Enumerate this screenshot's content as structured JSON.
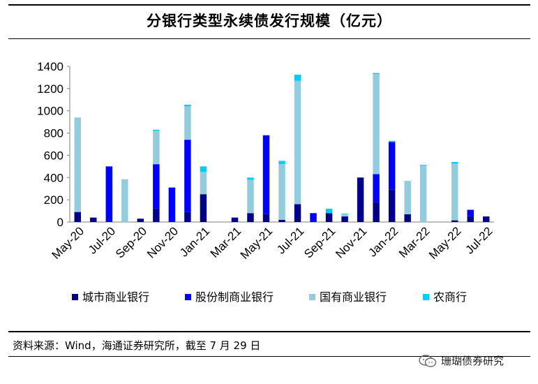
{
  "title": "分银行类型永续债发行规模（亿元）",
  "source_note": "资料来源：Wind，海通证券研究所，截至 7 月 29 日",
  "watermark": {
    "text": "珊瑚债券研究",
    "icon": "wechat-icon"
  },
  "chart_data": {
    "type": "bar",
    "stacked": true,
    "title": "分银行类型永续债发行规模（亿元）",
    "xlabel": "",
    "ylabel": "",
    "ylim": [
      0,
      1400
    ],
    "yticks": [
      "0",
      "200",
      "400",
      "600",
      "800",
      "1000",
      "1200",
      "1400"
    ],
    "grid": false,
    "legend_position": "bottom",
    "categories": [
      "May-20",
      "Jun-20",
      "Jul-20",
      "Aug-20",
      "Sep-20",
      "Oct-20",
      "Nov-20",
      "Dec-20",
      "Jan-21",
      "Feb-21",
      "Mar-21",
      "Apr-21",
      "May-21",
      "Jun-21",
      "Jul-21",
      "Aug-21",
      "Sep-21",
      "Oct-21",
      "Nov-21",
      "Dec-21",
      "Jan-22",
      "Feb-22",
      "Mar-22",
      "Apr-22",
      "May-22",
      "Jun-22",
      "Jul-22"
    ],
    "xtick_labels": [
      "May-20",
      "Jul-20",
      "Sep-20",
      "Nov-20",
      "Jan-21",
      "Mar-21",
      "May-21",
      "Jul-21",
      "Sep-21",
      "Nov-21",
      "Jan-22",
      "Mar-22",
      "May-22",
      "Jul-22"
    ],
    "series": [
      {
        "name": "城市商业银行",
        "color": "#00008B",
        "values": [
          90,
          40,
          0,
          0,
          30,
          120,
          0,
          90,
          250,
          0,
          40,
          80,
          70,
          20,
          160,
          0,
          80,
          50,
          400,
          180,
          290,
          70,
          0,
          0,
          15,
          55,
          50
        ]
      },
      {
        "name": "股份制商业银行",
        "color": "#0000FF",
        "values": [
          0,
          0,
          500,
          0,
          0,
          400,
          310,
          650,
          0,
          0,
          0,
          0,
          710,
          0,
          0,
          80,
          0,
          0,
          0,
          250,
          430,
          0,
          0,
          0,
          0,
          55,
          0
        ]
      },
      {
        "name": "国有商业银行",
        "color": "#93CDDD",
        "values": [
          850,
          0,
          0,
          385,
          0,
          300,
          0,
          300,
          200,
          0,
          0,
          300,
          0,
          500,
          1110,
          0,
          0,
          20,
          0,
          900,
          0,
          300,
          510,
          0,
          510,
          0,
          0
        ]
      },
      {
        "name": "农商行",
        "color": "#00CCFF",
        "values": [
          0,
          0,
          0,
          0,
          0,
          10,
          0,
          15,
          50,
          0,
          0,
          20,
          0,
          30,
          55,
          0,
          40,
          5,
          0,
          10,
          10,
          0,
          5,
          0,
          15,
          0,
          0
        ]
      }
    ]
  }
}
